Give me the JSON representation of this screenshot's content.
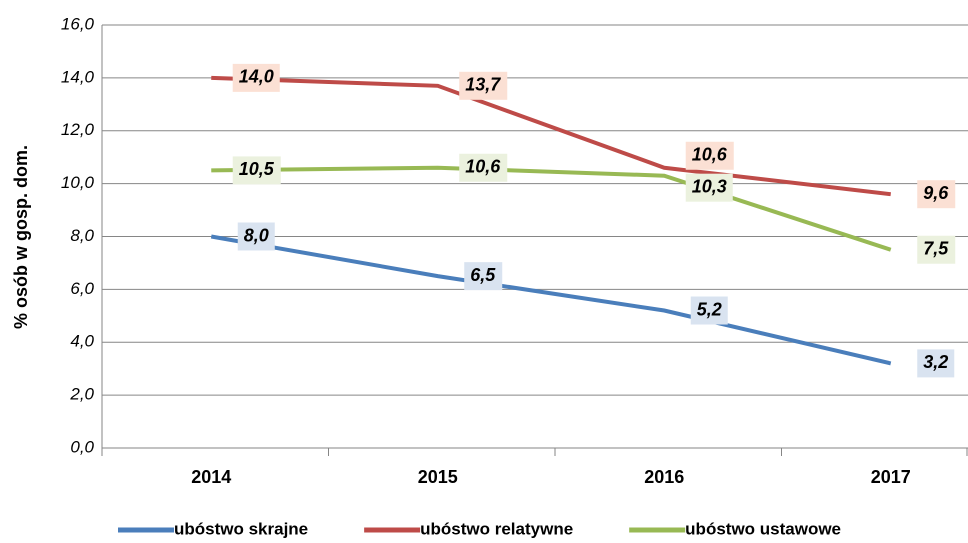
{
  "chart_data": {
    "type": "line",
    "y_label": "% osób w gosp. dom.",
    "categories": [
      "2014",
      "2015",
      "2016",
      "2017"
    ],
    "series": [
      {
        "name": "ubóstwo skrajne",
        "color": "#4a7ebb",
        "label_bg": "#d9e3f0",
        "values": [
          8.0,
          6.5,
          5.2,
          3.2
        ],
        "value_labels": [
          "8,0",
          "6,5",
          "5,2",
          "3,2"
        ]
      },
      {
        "name": "ubóstwo relatywne",
        "color": "#be4b48",
        "label_bg": "#fbe0d4",
        "values": [
          14.0,
          13.7,
          10.6,
          9.6
        ],
        "value_labels": [
          "14,0",
          "13,7",
          "10,6",
          "9,6"
        ]
      },
      {
        "name": "ubóstwo ustawowe",
        "color": "#98b954",
        "label_bg": "#ebf1de",
        "values": [
          10.5,
          10.6,
          10.3,
          7.5
        ],
        "value_labels": [
          "10,5",
          "10,6",
          "10,3",
          "7,5"
        ]
      }
    ],
    "ylim": [
      0,
      16
    ],
    "yticks": [
      {
        "value": 0,
        "label": "0,0"
      },
      {
        "value": 2,
        "label": "2,0"
      },
      {
        "value": 4,
        "label": "4,0"
      },
      {
        "value": 6,
        "label": "6,0"
      },
      {
        "value": 8,
        "label": "8,0"
      },
      {
        "value": 10,
        "label": "10,0"
      },
      {
        "value": 12,
        "label": "12,0"
      },
      {
        "value": 14,
        "label": "14,0"
      },
      {
        "value": 16,
        "label": "16,0"
      }
    ],
    "grid": true,
    "legend": "bottom"
  }
}
